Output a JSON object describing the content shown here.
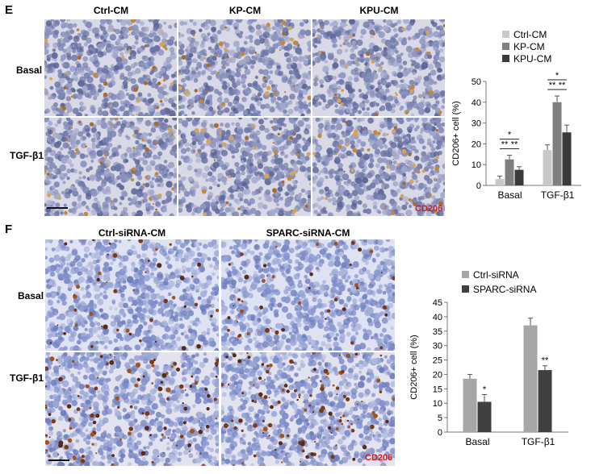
{
  "panel_E": {
    "letter": "E",
    "columns": [
      "Ctrl-CM",
      "KP-CM",
      "KPU-CM"
    ],
    "rows": [
      "Basal",
      "TGF-β1"
    ],
    "stain": "CD206"
  },
  "panel_F": {
    "letter": "F",
    "columns": [
      "Ctrl-siRNA-CM",
      "SPARC-siRNA-CM"
    ],
    "rows": [
      "Basal",
      "TGF-β1"
    ],
    "stain": "CD206"
  },
  "chart_data": [
    {
      "type": "bar",
      "categories": [
        "Basal",
        "TGF-β1"
      ],
      "series": [
        {
          "name": "Ctrl-CM",
          "values": [
            3,
            17
          ],
          "errors": [
            1.5,
            2.5
          ],
          "color": "#c8c8c8"
        },
        {
          "name": "KP-CM",
          "values": [
            12.5,
            40
          ],
          "errors": [
            2,
            3
          ],
          "color": "#7f7f7f"
        },
        {
          "name": "KPU-CM",
          "values": [
            7.5,
            25.5
          ],
          "errors": [
            1.5,
            3.5
          ],
          "color": "#3a3a3a"
        }
      ],
      "ylabel": "CD206+ cell (%)",
      "ylim": [
        0,
        50
      ],
      "yticks": [
        0,
        10,
        20,
        30,
        40,
        50
      ],
      "legend_position": "top",
      "significance": [
        {
          "group": "Basal",
          "pair": "Ctrl-CM vs KP-CM",
          "label": "**"
        },
        {
          "group": "Basal",
          "pair": "Ctrl-CM vs KPU-CM",
          "label": "*"
        },
        {
          "group": "Basal",
          "pair": "KP-CM vs KPU-CM",
          "label": "**"
        },
        {
          "group": "TGF-β1",
          "pair": "Ctrl-CM vs KP-CM",
          "label": "**"
        },
        {
          "group": "TGF-β1",
          "pair": "Ctrl-CM vs KPU-CM",
          "label": "*"
        },
        {
          "group": "TGF-β1",
          "pair": "KP-CM vs KPU-CM",
          "label": "**"
        }
      ]
    },
    {
      "type": "bar",
      "categories": [
        "Basal",
        "TGF-β1"
      ],
      "series": [
        {
          "name": "Ctrl-siRNA",
          "values": [
            18.5,
            37
          ],
          "errors": [
            1.5,
            2.5
          ],
          "color": "#a6a6a6"
        },
        {
          "name": "SPARC-siRNA",
          "values": [
            10.5,
            21.5
          ],
          "errors": [
            2.5,
            1.5
          ],
          "color": "#404040",
          "labels": [
            "*",
            "**"
          ]
        }
      ],
      "ylabel": "CD206+ cell (%)",
      "ylim": [
        0,
        45
      ],
      "yticks": [
        0,
        5,
        10,
        15,
        20,
        25,
        30,
        35,
        40,
        45
      ],
      "legend_position": "top"
    }
  ]
}
